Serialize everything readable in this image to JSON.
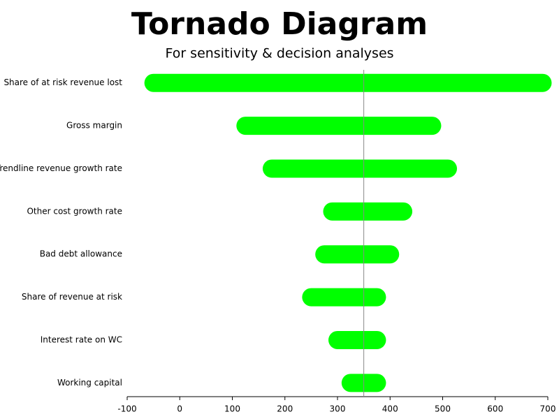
{
  "chart_data": {
    "type": "tornado",
    "title": "Tornado Diagram",
    "subtitle": "For sensitivity & decision analyses",
    "categories": [
      "Share of at risk revenue lost",
      "Gross margin",
      "Trendline revenue growth rate",
      "Other cost growth rate",
      "Bad debt allowance",
      "Share of revenue at risk",
      "Interest rate on WC",
      "Working capital"
    ],
    "low": [
      -50,
      125,
      175,
      290,
      275,
      250,
      300,
      325
    ],
    "high": [
      690,
      480,
      510,
      425,
      400,
      375,
      375,
      375
    ],
    "base": 350,
    "color": "#00ff00",
    "xlim": [
      -100,
      700
    ],
    "xticks": [
      -100,
      0,
      100,
      200,
      300,
      400,
      500,
      600,
      700
    ]
  }
}
